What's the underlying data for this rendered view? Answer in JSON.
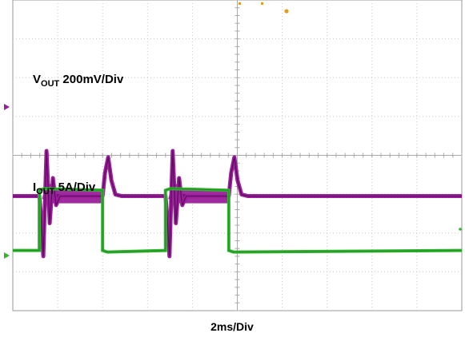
{
  "chart_data": {
    "type": "line",
    "title": "",
    "xlabel": "2ms/Div",
    "grid": true,
    "x_divisions": 10,
    "y_divisions": 8,
    "colors": {
      "vout": "#9b1f9b",
      "vout_dark": "#5a0a5a",
      "iout": "#31b531",
      "grid": "#c8c8c8",
      "marker": "#e39c1c"
    },
    "series": [
      {
        "key": "vout",
        "label_main": "V",
        "label_sub": "OUT",
        "label_tail": " 200mV/Div",
        "baseline_div": 2.95,
        "load_steps_ms": [
          {
            "on": 1.18,
            "off": 4.0
          },
          {
            "on": 6.8,
            "off": 9.62
          }
        ],
        "undershoot_div": 1.55,
        "overshoot_div": 1.0
      },
      {
        "key": "iout",
        "label_main": "I",
        "label_sub": "OUT",
        "label_tail": " 5A/Div",
        "low_div": 1.55,
        "high_div": 3.1,
        "load_steps_ms": [
          {
            "on": 1.18,
            "off": 4.0
          },
          {
            "on": 6.8,
            "off": 9.62
          }
        ]
      }
    ]
  }
}
